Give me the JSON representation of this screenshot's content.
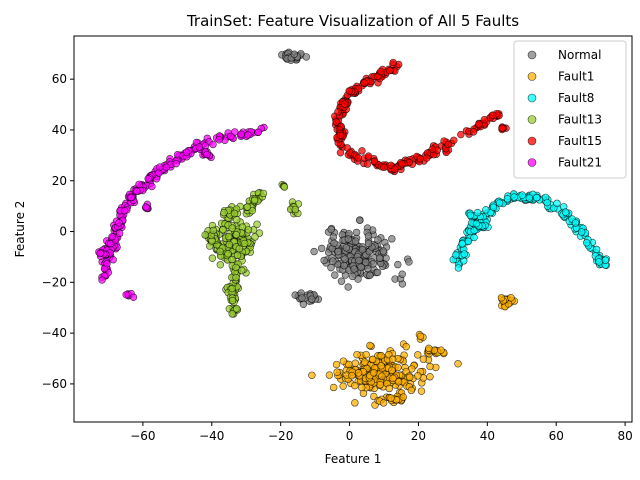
{
  "chart_data": {
    "type": "scatter",
    "title": "TrainSet: Feature Visualization of All 5 Faults",
    "xlabel": "Feature 1",
    "ylabel": "Feature 2",
    "xlim": [
      -80,
      82
    ],
    "ylim": [
      -75,
      77
    ],
    "xticks": [
      -60,
      -40,
      -20,
      0,
      20,
      40,
      60,
      80
    ],
    "yticks": [
      -60,
      -40,
      -20,
      0,
      20,
      40,
      60
    ],
    "grid": false,
    "legend_position": "top-right",
    "series": [
      {
        "name": "Normal",
        "color": "#808080",
        "clusters": [
          {
            "shape": "blob",
            "cx": 3,
            "cy": -9,
            "rx": 10,
            "ry": 10,
            "n": 200
          },
          {
            "shape": "blob",
            "cx": -17,
            "cy": 69,
            "rx": 3,
            "ry": 1.8,
            "n": 25
          },
          {
            "shape": "blob",
            "cx": -12,
            "cy": -25.5,
            "rx": 3.5,
            "ry": 2.2,
            "n": 25
          }
        ]
      },
      {
        "name": "Fault1",
        "color": "#ffb000",
        "clusters": [
          {
            "shape": "blob",
            "cx": 9,
            "cy": -56,
            "rx": 13,
            "ry": 8,
            "n": 220
          },
          {
            "shape": "blob",
            "cx": 12,
            "cy": -66,
            "rx": 5,
            "ry": 1.5,
            "n": 20
          },
          {
            "shape": "blob",
            "cx": 24,
            "cy": -47,
            "rx": 3.5,
            "ry": 1.5,
            "n": 15
          },
          {
            "shape": "blob",
            "cx": 45,
            "cy": -27.5,
            "rx": 2.5,
            "ry": 2,
            "n": 20
          },
          {
            "shape": "blob",
            "cx": 20,
            "cy": -41.5,
            "rx": 1,
            "ry": 1,
            "n": 4
          }
        ]
      },
      {
        "name": "Fault8",
        "color": "#00ffff",
        "clusters": [
          {
            "shape": "curve",
            "spread": 0.8,
            "n": 170,
            "points": [
              [
                31,
                -14
              ],
              [
                33,
                -6
              ],
              [
                37,
                3
              ],
              [
                42,
                10
              ],
              [
                48,
                14
              ],
              [
                55,
                13
              ],
              [
                62,
                8
              ],
              [
                67,
                1
              ],
              [
                71,
                -7
              ],
              [
                74,
                -13
              ]
            ]
          },
          {
            "shape": "curve",
            "spread": 0.7,
            "n": 25,
            "points": [
              [
                36,
                8
              ],
              [
                36,
                4
              ],
              [
                38,
                2
              ],
              [
                40,
                1
              ]
            ]
          }
        ]
      },
      {
        "name": "Fault13",
        "color": "#9acd32",
        "clusters": [
          {
            "shape": "blob",
            "cx": -34,
            "cy": -4,
            "rx": 6,
            "ry": 10,
            "n": 140
          },
          {
            "shape": "curve",
            "spread": 0.8,
            "n": 50,
            "points": [
              [
                -33,
                -15
              ],
              [
                -34,
                -22
              ],
              [
                -34,
                -28
              ],
              [
                -34,
                -32
              ]
            ]
          },
          {
            "shape": "curve",
            "spread": 0.8,
            "n": 40,
            "points": [
              [
                -37,
                7
              ],
              [
                -32,
                8
              ],
              [
                -28,
                11
              ],
              [
                -25,
                15
              ]
            ]
          },
          {
            "shape": "blob",
            "cx": -16,
            "cy": 9,
            "rx": 1.5,
            "ry": 3,
            "n": 12
          },
          {
            "shape": "blob",
            "cx": -19,
            "cy": 18,
            "rx": 0.8,
            "ry": 0.8,
            "n": 4
          },
          {
            "shape": "blob",
            "cx": -40,
            "cy": -2,
            "rx": 2.5,
            "ry": 3,
            "n": 20
          }
        ]
      },
      {
        "name": "Fault15",
        "color": "#ff0000",
        "clusters": [
          {
            "shape": "curve",
            "spread": 0.8,
            "n": 220,
            "points": [
              [
                14,
                65
              ],
              [
                8,
                61
              ],
              [
                2,
                56
              ],
              [
                -2,
                50
              ],
              [
                -3,
                42
              ],
              [
                -2,
                34
              ],
              [
                2,
                29
              ],
              [
                8,
                26
              ],
              [
                13,
                25
              ],
              [
                19,
                28
              ],
              [
                26,
                32
              ],
              [
                32,
                37
              ],
              [
                38,
                42
              ],
              [
                43,
                46
              ]
            ]
          },
          {
            "shape": "blob",
            "cx": 45,
            "cy": 41,
            "rx": 0.8,
            "ry": 0.8,
            "n": 6
          }
        ]
      },
      {
        "name": "Fault21",
        "color": "#ff00ff",
        "clusters": [
          {
            "shape": "curve",
            "spread": 0.8,
            "n": 200,
            "points": [
              [
                -25,
                40
              ],
              [
                -33,
                38
              ],
              [
                -42,
                35
              ],
              [
                -50,
                29
              ],
              [
                -57,
                22
              ],
              [
                -62,
                15
              ],
              [
                -66,
                8
              ],
              [
                -68,
                -1
              ],
              [
                -70,
                -9
              ],
              [
                -71,
                -18
              ]
            ]
          },
          {
            "shape": "blob",
            "cx": -72,
            "cy": -9,
            "rx": 1,
            "ry": 1.5,
            "n": 6
          },
          {
            "shape": "blob",
            "cx": -64,
            "cy": -25,
            "rx": 1,
            "ry": 0.8,
            "n": 6
          },
          {
            "shape": "blob",
            "cx": -41,
            "cy": 30,
            "rx": 2,
            "ry": 1.5,
            "n": 10
          },
          {
            "shape": "blob",
            "cx": -59,
            "cy": 10,
            "rx": 1,
            "ry": 1.5,
            "n": 6
          }
        ]
      }
    ]
  }
}
